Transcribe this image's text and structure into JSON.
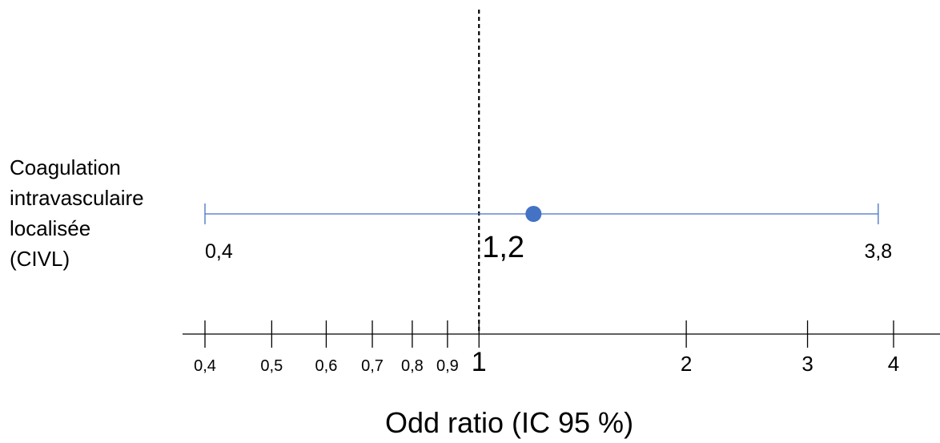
{
  "chart_data": {
    "type": "forest",
    "xlabel": "Odd ratio (IC 95 %)",
    "x_scale": "log",
    "xlim": [
      0.36,
      4.5
    ],
    "reference_line": 1,
    "ticks": [
      {
        "value": 0.4,
        "label": "0,4"
      },
      {
        "value": 0.5,
        "label": "0,5"
      },
      {
        "value": 0.6,
        "label": "0,6"
      },
      {
        "value": 0.7,
        "label": "0,7"
      },
      {
        "value": 0.8,
        "label": "0,8"
      },
      {
        "value": 0.9,
        "label": "0,9"
      },
      {
        "value": 1,
        "label": "1"
      },
      {
        "value": 2,
        "label": "2"
      },
      {
        "value": 3,
        "label": "3"
      },
      {
        "value": 4,
        "label": "4"
      }
    ],
    "rows": [
      {
        "label_lines": [
          "Coagulation",
          "intravasculaire",
          "localisée",
          "(CIVL)"
        ],
        "estimate": 1.2,
        "lower": 0.4,
        "upper": 3.8,
        "estimate_label": "1,2",
        "lower_label": "0,4",
        "upper_label": "3,8"
      }
    ],
    "colors": {
      "ci_line": "#4472c4",
      "point": "#4472c4",
      "axis": "#000000"
    }
  }
}
